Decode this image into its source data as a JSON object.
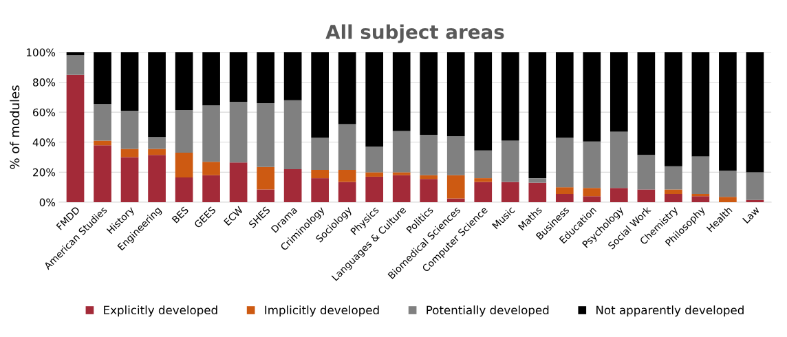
{
  "chart_data": {
    "type": "bar",
    "title": "All subject areas",
    "ylabel": "% of modules",
    "stacked": true,
    "categories": [
      "FMDD",
      "American Studies",
      "History",
      "Engineering",
      "BES",
      "GEES",
      "ECW",
      "SHES",
      "Drama",
      "Criminology",
      "Sociology",
      "Physics",
      "Languages & Culture",
      "Politics",
      "Biomedical Sciences",
      "Computer Science",
      "Music",
      "Maths",
      "Business",
      "Education",
      "Psychology",
      "Social Work",
      "Chemistry",
      "Philosophy",
      "Health",
      "Law"
    ],
    "series": [
      {
        "name": "Explicitly developed",
        "color": "#a32a38",
        "values": [
          85,
          38,
          30,
          31.5,
          16.5,
          18,
          26.5,
          8.5,
          22,
          16,
          13.5,
          17,
          18,
          15.5,
          2.5,
          13.5,
          13.5,
          13,
          5.5,
          4,
          9.5,
          8.5,
          5.5,
          4,
          0,
          1.5
        ]
      },
      {
        "name": "Implicitly developed",
        "color": "#cd5a12",
        "values": [
          0,
          3,
          5.5,
          4,
          16.5,
          9,
          0,
          15,
          0,
          5.5,
          8,
          3,
          2,
          2.5,
          15.5,
          2.5,
          0,
          0,
          4.5,
          5.5,
          0,
          0,
          3,
          1.5,
          3.5,
          0
        ]
      },
      {
        "name": "Potentially developed",
        "color": "#808080",
        "values": [
          13,
          24.5,
          25.5,
          8,
          28.5,
          37.5,
          40.5,
          42.5,
          46,
          21.5,
          30.5,
          17,
          27.5,
          27,
          26,
          18.5,
          27.5,
          3,
          33,
          31,
          37.5,
          23,
          15.5,
          25,
          17.5,
          18.5
        ]
      },
      {
        "name": "Not apparently developed",
        "color": "#000000",
        "values": [
          2,
          34.5,
          39,
          56.5,
          38.5,
          35.5,
          33,
          34,
          32,
          57,
          48,
          63,
          52.5,
          55,
          56,
          65.5,
          59,
          84,
          57,
          59.5,
          53,
          68.5,
          76,
          69.5,
          79,
          80
        ]
      }
    ],
    "ylim": [
      0,
      100
    ],
    "yticks": [
      {
        "value": 0,
        "label": "0%"
      },
      {
        "value": 20,
        "label": "20%"
      },
      {
        "value": 40,
        "label": "40%"
      },
      {
        "value": 60,
        "label": "60%"
      },
      {
        "value": 80,
        "label": "80%"
      },
      {
        "value": 100,
        "label": "100%"
      }
    ],
    "grid": "y",
    "legend": "bottom"
  }
}
